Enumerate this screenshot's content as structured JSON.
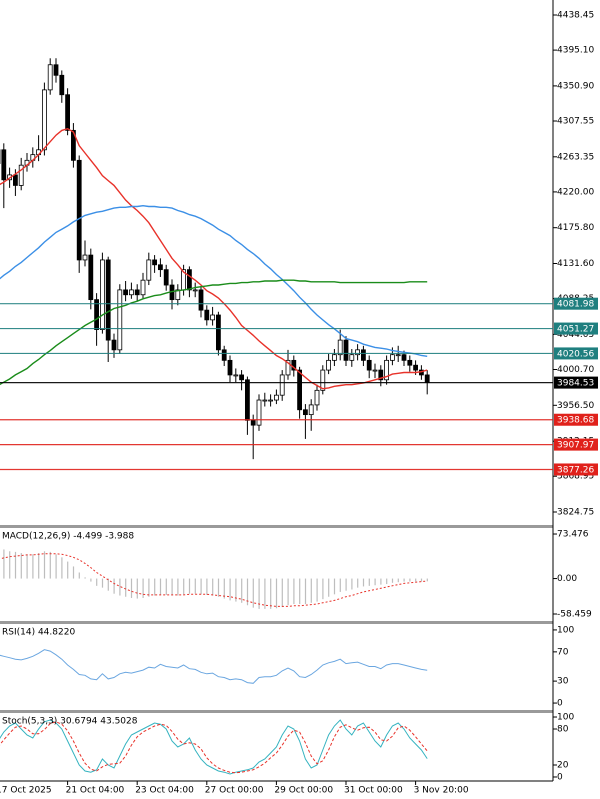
{
  "chart_data": [
    {
      "type": "candlestick",
      "categories": [
        "17 Oct 2025",
        null,
        null,
        null,
        null,
        null,
        null,
        null,
        null,
        null,
        null,
        null,
        "21 Oct 04:00",
        null,
        null,
        null,
        null,
        null,
        null,
        null,
        null,
        null,
        null,
        null,
        "23 Oct 04:00",
        null,
        null,
        null,
        null,
        null,
        null,
        null,
        null,
        null,
        null,
        null,
        "27 Oct 00:00",
        null,
        null,
        null,
        null,
        null,
        null,
        null,
        null,
        null,
        null,
        null,
        "29 Oct 00:00",
        null,
        null,
        null,
        null,
        null,
        null,
        null,
        null,
        null,
        null,
        null,
        "31 Oct 00:00",
        null,
        null,
        null,
        null,
        null,
        null,
        null,
        null,
        null,
        null,
        null,
        "3 Nov 20:00",
        null,
        null
      ],
      "open": [
        4255,
        4272,
        4235,
        4241,
        4228,
        4253,
        4259,
        4266,
        4272,
        4346,
        4377,
        4364,
        4340,
        4296,
        4259,
        4136,
        4142,
        4087,
        4050,
        4136,
        4037,
        4025,
        4099,
        4093,
        4099,
        4093,
        4111,
        4136,
        4130,
        4124,
        4105,
        4087,
        4099,
        4124,
        4099,
        4099,
        4074,
        4062,
        4068,
        4025,
        4012,
        3994,
        3994,
        3988,
        3938,
        3932,
        3963,
        3963,
        3963,
        3969,
        3994,
        4012,
        4000,
        3951,
        3945,
        3957,
        3975,
        4000,
        4012,
        4019,
        4037,
        4012,
        4019,
        4025,
        4012,
        4000,
        4000,
        3988,
        4012,
        4019,
        4019,
        4012,
        4006,
        4000,
        3994
      ],
      "high": [
        4290,
        4280,
        4250,
        4248,
        4262,
        4268,
        4275,
        4290,
        4355,
        4385,
        4385,
        4370,
        4348,
        4305,
        4265,
        4160,
        4150,
        4095,
        4145,
        4140,
        4045,
        4106,
        4110,
        4108,
        4106,
        4120,
        4145,
        4142,
        4138,
        4130,
        4112,
        4106,
        4130,
        4128,
        4108,
        4104,
        4080,
        4078,
        4072,
        4030,
        4018,
        4002,
        4000,
        3992,
        3945,
        3970,
        3972,
        3970,
        3976,
        4000,
        4025,
        4018,
        4004,
        3958,
        3964,
        3982,
        4006,
        4020,
        4026,
        4050,
        4042,
        4026,
        4032,
        4030,
        4018,
        4008,
        4006,
        4018,
        4028,
        4030,
        4024,
        4018,
        4012,
        4006,
        4000
      ],
      "low": [
        4240,
        4200,
        4225,
        4215,
        4222,
        4245,
        4250,
        4258,
        4265,
        4340,
        4355,
        4330,
        4290,
        4250,
        4120,
        4128,
        4075,
        4030,
        4045,
        4010,
        4015,
        4020,
        4085,
        4088,
        4085,
        4088,
        4105,
        4120,
        4115,
        4098,
        4075,
        4080,
        4092,
        4090,
        4090,
        4065,
        4055,
        4055,
        4018,
        4005,
        3985,
        3985,
        3975,
        3920,
        3890,
        3925,
        3955,
        3955,
        3958,
        3962,
        3988,
        3992,
        3940,
        3915,
        3925,
        3950,
        3970,
        3995,
        4005,
        4012,
        4005,
        4004,
        4012,
        4005,
        3990,
        3990,
        3980,
        3982,
        4006,
        4010,
        4005,
        3998,
        3994,
        3988,
        3970
      ],
      "close": [
        4272,
        4235,
        4241,
        4228,
        4253,
        4259,
        4266,
        4272,
        4346,
        4377,
        4364,
        4340,
        4296,
        4259,
        4136,
        4142,
        4087,
        4050,
        4136,
        4037,
        4025,
        4099,
        4093,
        4099,
        4093,
        4111,
        4136,
        4130,
        4124,
        4105,
        4087,
        4099,
        4124,
        4099,
        4099,
        4074,
        4062,
        4068,
        4025,
        4012,
        3994,
        3994,
        3988,
        3938,
        3932,
        3963,
        3963,
        3963,
        3969,
        3994,
        4012,
        4000,
        3951,
        3945,
        3957,
        3975,
        4000,
        4012,
        4019,
        4037,
        4012,
        4019,
        4025,
        4012,
        4000,
        4000,
        3988,
        4012,
        4019,
        4019,
        4012,
        4006,
        4000,
        3994,
        3984.53
      ],
      "up_color": "#ffffff",
      "down_color": "#000000",
      "series": [
        {
          "color": "#e8322a",
          "values": [
            4228,
            4232,
            4237,
            4242,
            4247,
            4253,
            4259,
            4266,
            4274,
            4282,
            4290,
            4296,
            4298,
            4294,
            4277,
            4268,
            4259,
            4250,
            4240,
            4234,
            4228,
            4219,
            4210,
            4203,
            4197,
            4190,
            4182,
            4171,
            4160,
            4149,
            4138,
            4130,
            4121,
            4116,
            4111,
            4105,
            4098,
            4094,
            4089,
            4082,
            4074,
            4065,
            4055,
            4049,
            4043,
            4036,
            4030,
            4024,
            4018,
            4014,
            4009,
            4003,
            3997,
            3991,
            3985,
            3981,
            3977,
            3978,
            3980,
            3981,
            3982,
            3982,
            3983,
            3984,
            3986,
            3988,
            3990,
            3992,
            3995,
            3996,
            3997,
            3997,
            3997,
            3998,
            4000
          ]
        },
        {
          "color": "#3b8fe6",
          "values": [
            4111,
            4117,
            4122,
            4128,
            4133,
            4139,
            4145,
            4151,
            4158,
            4164,
            4170,
            4174,
            4178,
            4183,
            4187,
            4191,
            4193,
            4195,
            4196,
            4198,
            4200,
            4201,
            4201,
            4202,
            4202,
            4203,
            4202,
            4202,
            4201,
            4201,
            4200,
            4197,
            4195,
            4192,
            4190,
            4187,
            4183,
            4179,
            4174,
            4170,
            4166,
            4160,
            4155,
            4149,
            4144,
            4138,
            4131,
            4125,
            4118,
            4112,
            4105,
            4098,
            4090,
            4083,
            4075,
            4068,
            4062,
            4056,
            4051,
            4045,
            4039,
            4037,
            4035,
            4032,
            4030,
            4028,
            4027,
            4026,
            4024,
            4023,
            4022,
            4021,
            4020,
            4018,
            4017
          ]
        },
        {
          "color": "#1a8c1a",
          "values": [
            3981,
            3985,
            3989,
            3994,
            3998,
            4002,
            4008,
            4013,
            4019,
            4024,
            4030,
            4035,
            4040,
            4045,
            4050,
            4055,
            4059,
            4063,
            4068,
            4072,
            4076,
            4078,
            4080,
            4083,
            4085,
            4088,
            4090,
            4092,
            4093,
            4095,
            4097,
            4098,
            4099,
            4100,
            4102,
            4103,
            4104,
            4105,
            4105,
            4106,
            4107,
            4107,
            4108,
            4108,
            4109,
            4109,
            4110,
            4110,
            4110,
            4111,
            4111,
            4111,
            4110,
            4110,
            4109,
            4109,
            4109,
            4109,
            4109,
            4108,
            4108,
            4108,
            4108,
            4108,
            4108,
            4108,
            4108,
            4108,
            4108,
            4108,
            4108,
            4109,
            4109,
            4109,
            4109
          ]
        }
      ],
      "levels": [
        {
          "value": 4081.98,
          "color": "#1f7f7f"
        },
        {
          "value": 4051.27,
          "color": "#1f7f7f"
        },
        {
          "value": 4020.56,
          "color": "#1f7f7f"
        },
        {
          "value": 3984.53,
          "color": "#000000"
        },
        {
          "value": 3938.68,
          "color": "#e0211b"
        },
        {
          "value": 3907.97,
          "color": "#e0211b"
        },
        {
          "value": 3877.26,
          "color": "#e0211b"
        }
      ],
      "ylim": [
        3808.7,
        4456.97
      ],
      "yticks": [
        4438.45,
        {
          "value": 4395.1,
          "label": "4395.10"
        },
        {
          "value": 4350.9,
          "label": "4350.90"
        },
        4307.55,
        4263.35,
        {
          "value": 4220,
          "label": "4220.00"
        },
        {
          "value": 4175.8,
          "label": "4175.80"
        },
        {
          "value": 4131.6,
          "label": "4131.60"
        },
        4088.25,
        4044.05,
        {
          "value": 4000.7,
          "label": "4000.70"
        },
        {
          "value": 3956.5,
          "label": "3956.50"
        },
        3912.15,
        3868.95,
        3824.75
      ],
      "grid": false
    },
    {
      "type": "macd",
      "title": "MACD(12,26,9) -4.499 -3.988",
      "color": "#bdbdbd",
      "values": [
        50,
        48,
        45,
        44,
        42,
        40,
        40,
        42,
        45,
        44,
        40,
        35,
        28,
        20,
        10,
        2,
        -5,
        -12,
        -15,
        -20,
        -25,
        -28,
        -30,
        -32,
        -33,
        -32,
        -30,
        -28,
        -27,
        -27,
        -28,
        -28,
        -26,
        -25,
        -25,
        -26,
        -27,
        -28,
        -30,
        -33,
        -36,
        -38,
        -40,
        -44,
        -48,
        -50,
        -50,
        -50,
        -49,
        -47,
        -44,
        -42,
        -42,
        -42,
        -40,
        -38,
        -34,
        -30,
        -26,
        -22,
        -20,
        -18,
        -15,
        -13,
        -12,
        -11,
        -10,
        -9,
        -7,
        -6,
        -5,
        -5,
        -5,
        -5,
        -4.499
      ],
      "signal": {
        "color": "#e8322a",
        "values": [
          32,
          34,
          36,
          37,
          38,
          39,
          39,
          40,
          41,
          41,
          41,
          40,
          38,
          35,
          31,
          25,
          18,
          10,
          4,
          -2,
          -8,
          -13,
          -17,
          -21,
          -24,
          -26,
          -27,
          -27,
          -27,
          -27,
          -27,
          -27,
          -27,
          -26,
          -26,
          -26,
          -26,
          -27,
          -28,
          -29,
          -30,
          -32,
          -34,
          -37,
          -40,
          -42,
          -44,
          -45,
          -46,
          -46,
          -46,
          -45,
          -45,
          -44,
          -43,
          -42,
          -40,
          -38,
          -36,
          -33,
          -30,
          -28,
          -25,
          -22,
          -20,
          -18,
          -16,
          -14,
          -12,
          -10,
          -8,
          -7,
          -6,
          -5,
          -3.988
        ]
      },
      "ylim": [
        -70.0,
        83.4
      ],
      "yticks": [
        73.476,
        {
          "value": 0,
          "label": "0.00"
        },
        -58.459
      ]
    },
    {
      "type": "line",
      "title": "RSI(14) 44.8220",
      "series": [
        {
          "color": "#6aa6e0",
          "values": [
            66,
            64,
            62,
            60,
            59,
            61,
            64,
            68,
            73,
            71,
            66,
            60,
            52,
            46,
            39,
            38,
            33,
            32,
            40,
            33,
            35,
            40,
            42,
            41,
            43,
            45,
            49,
            48,
            53,
            50,
            49,
            48,
            52,
            47,
            46,
            42,
            40,
            41,
            36,
            35,
            32,
            33,
            32,
            28,
            27,
            35,
            36,
            36,
            38,
            44,
            48,
            44,
            36,
            35,
            39,
            45,
            52,
            55,
            57,
            60,
            54,
            55,
            56,
            53,
            50,
            50,
            47,
            52,
            54,
            54,
            52,
            50,
            48,
            46,
            44.822
          ]
        }
      ],
      "ylim": [
        -9.5,
        108.1
      ],
      "yticks": [
        100,
        70,
        30,
        0
      ]
    },
    {
      "type": "line",
      "title": "Stoch(5,3,3) 30.6794 43.5028",
      "series": [
        {
          "color": "#35b3c0",
          "dashed": false,
          "values": [
            60,
            75,
            85,
            90,
            80,
            70,
            65,
            80,
            92,
            95,
            90,
            80,
            60,
            40,
            20,
            10,
            8,
            12,
            30,
            20,
            15,
            35,
            55,
            70,
            75,
            80,
            85,
            90,
            88,
            80,
            60,
            50,
            55,
            65,
            45,
            30,
            20,
            15,
            10,
            8,
            5,
            8,
            10,
            12,
            15,
            25,
            30,
            40,
            50,
            70,
            85,
            80,
            60,
            30,
            15,
            20,
            45,
            70,
            85,
            95,
            80,
            70,
            85,
            90,
            75,
            60,
            50,
            70,
            85,
            90,
            80,
            65,
            55,
            45,
            30.6794
          ]
        },
        {
          "color": "#e8322a",
          "dashed": true,
          "values": [
            50,
            62,
            73,
            83,
            85,
            80,
            72,
            72,
            79,
            89,
            92,
            88,
            77,
            60,
            40,
            23,
            13,
            10,
            17,
            21,
            22,
            23,
            35,
            53,
            67,
            75,
            80,
            85,
            88,
            86,
            76,
            63,
            55,
            57,
            55,
            47,
            32,
            22,
            15,
            11,
            8,
            7,
            8,
            10,
            12,
            17,
            23,
            32,
            40,
            53,
            68,
            78,
            75,
            57,
            35,
            22,
            27,
            45,
            67,
            83,
            87,
            82,
            78,
            82,
            83,
            75,
            62,
            60,
            68,
            82,
            85,
            78,
            67,
            55,
            43.5028
          ]
        }
      ],
      "ylim": [
        -6.7,
        106.7
      ],
      "yticks": [
        100,
        80,
        20,
        0
      ]
    }
  ]
}
